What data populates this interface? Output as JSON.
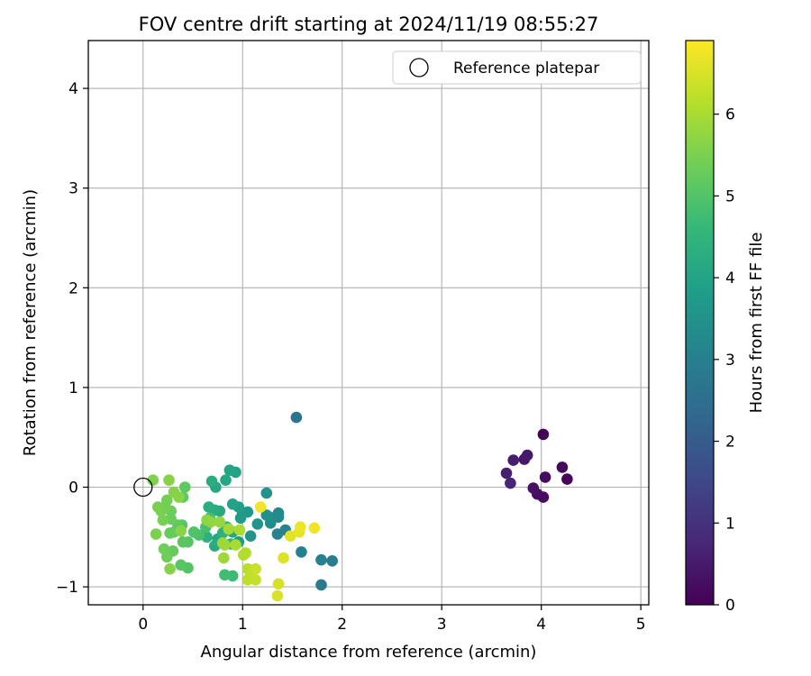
{
  "chart_data": {
    "type": "scatter",
    "title": "FOV centre drift starting at 2024/11/19 08:55:27",
    "xlabel": "Angular distance from reference (arcmin)",
    "ylabel": "Rotation from reference (arcmin)",
    "xlim": [
      -0.55,
      5.08
    ],
    "ylim": [
      -1.18,
      4.48
    ],
    "xticks": [
      0,
      1,
      2,
      3,
      4,
      5
    ],
    "yticks": [
      -1,
      0,
      1,
      2,
      3,
      4
    ],
    "grid": true,
    "colormap": "viridis",
    "colorbar": {
      "label": "Hours from first FF file",
      "range": [
        0,
        6.9
      ],
      "ticks": [
        0,
        1,
        2,
        3,
        4,
        5,
        6
      ],
      "colors": [
        "#440154",
        "#482878",
        "#3e4989",
        "#31688e",
        "#26828e",
        "#1f9e89",
        "#35b779",
        "#6ece58",
        "#b5de2b",
        "#fde725"
      ]
    },
    "legend": {
      "position": "top-right",
      "entries": [
        {
          "label": "Reference platepar",
          "marker": "open-circle",
          "x": 0,
          "y": 0
        }
      ]
    },
    "points": [
      [
        4.02,
        0.53,
        0.05
      ],
      [
        4.26,
        0.08,
        0.1
      ],
      [
        4.21,
        0.2,
        0.15
      ],
      [
        4.04,
        0.1,
        0.2
      ],
      [
        4.02,
        -0.1,
        0.25
      ],
      [
        3.96,
        -0.07,
        0.3
      ],
      [
        3.92,
        -0.01,
        0.35
      ],
      [
        3.83,
        0.28,
        0.45
      ],
      [
        3.86,
        0.32,
        0.5
      ],
      [
        3.72,
        0.27,
        0.55
      ],
      [
        3.65,
        0.14,
        0.6
      ],
      [
        3.69,
        0.04,
        0.7
      ],
      [
        1.54,
        0.7,
        2.7
      ],
      [
        1.79,
        -0.98,
        2.8
      ],
      [
        1.9,
        -0.74,
        2.9
      ],
      [
        1.79,
        -0.73,
        3.0
      ],
      [
        1.59,
        -0.65,
        3.05
      ],
      [
        1.35,
        -0.47,
        3.1
      ],
      [
        1.43,
        -0.43,
        3.15
      ],
      [
        1.36,
        -0.26,
        3.2
      ],
      [
        1.36,
        -0.3,
        3.3
      ],
      [
        1.28,
        -0.36,
        3.35
      ],
      [
        1.27,
        -0.3,
        3.4
      ],
      [
        1.24,
        -0.28,
        3.45
      ],
      [
        1.24,
        -0.06,
        3.5
      ],
      [
        1.15,
        -0.37,
        3.55
      ],
      [
        1.08,
        -0.49,
        3.6
      ],
      [
        1.05,
        -0.25,
        3.65
      ],
      [
        1.0,
        -0.26,
        3.7
      ],
      [
        0.98,
        -0.31,
        3.75
      ],
      [
        0.96,
        -0.55,
        3.8
      ],
      [
        0.96,
        -0.2,
        3.9
      ],
      [
        0.93,
        0.15,
        3.95
      ],
      [
        0.9,
        -0.17,
        4.0
      ],
      [
        0.87,
        0.17,
        4.0
      ],
      [
        0.9,
        -0.45,
        4.05
      ],
      [
        0.83,
        0.07,
        4.1
      ],
      [
        0.77,
        -0.24,
        4.1
      ],
      [
        0.75,
        -0.52,
        4.15
      ],
      [
        0.73,
        0.0,
        4.15
      ],
      [
        0.72,
        -0.59,
        4.2
      ],
      [
        0.72,
        -0.23,
        4.25
      ],
      [
        0.69,
        0.06,
        4.25
      ],
      [
        0.66,
        -0.2,
        4.3
      ],
      [
        0.64,
        -0.5,
        4.35
      ],
      [
        0.8,
        -0.46,
        4.4
      ],
      [
        0.84,
        -0.4,
        4.45
      ],
      [
        0.88,
        -0.57,
        4.5
      ],
      [
        0.9,
        -0.89,
        4.7
      ],
      [
        0.82,
        -0.88,
        4.75
      ],
      [
        0.67,
        -0.31,
        4.8
      ],
      [
        0.63,
        -0.4,
        4.85
      ],
      [
        0.56,
        -0.48,
        4.9
      ],
      [
        0.51,
        -0.45,
        4.95
      ],
      [
        0.45,
        -0.81,
        5.0
      ],
      [
        0.45,
        -0.55,
        5.05
      ],
      [
        0.39,
        -0.38,
        5.05
      ],
      [
        0.38,
        -0.78,
        5.1
      ],
      [
        0.4,
        -0.55,
        5.1
      ],
      [
        0.4,
        -0.1,
        5.15
      ],
      [
        0.42,
        0.0,
        5.15
      ],
      [
        0.35,
        -0.38,
        5.2
      ],
      [
        0.31,
        -0.45,
        5.2
      ],
      [
        0.3,
        -0.64,
        5.25
      ],
      [
        0.27,
        -0.46,
        5.25
      ],
      [
        0.28,
        -0.32,
        5.3
      ],
      [
        0.28,
        -0.24,
        5.3
      ],
      [
        0.24,
        -0.7,
        5.35
      ],
      [
        0.21,
        -0.62,
        5.35
      ],
      [
        0.24,
        -0.13,
        5.4
      ],
      [
        0.22,
        -0.2,
        5.4
      ],
      [
        0.2,
        -0.33,
        5.45
      ],
      [
        0.18,
        -0.24,
        5.45
      ],
      [
        0.15,
        -0.2,
        5.5
      ],
      [
        0.13,
        -0.47,
        5.5
      ],
      [
        0.1,
        0.07,
        5.55
      ],
      [
        0.26,
        0.07,
        5.6
      ],
      [
        0.27,
        -0.82,
        5.6
      ],
      [
        0.31,
        -0.05,
        5.6
      ],
      [
        0.36,
        -0.1,
        5.65
      ],
      [
        0.38,
        -0.44,
        5.65
      ],
      [
        0.64,
        -0.33,
        5.7
      ],
      [
        0.68,
        -0.35,
        5.75
      ],
      [
        0.77,
        -0.35,
        5.8
      ],
      [
        0.8,
        -0.56,
        5.85
      ],
      [
        0.81,
        -0.71,
        5.9
      ],
      [
        0.82,
        -0.58,
        5.9
      ],
      [
        0.86,
        -0.42,
        5.95
      ],
      [
        0.93,
        -0.58,
        6.0
      ],
      [
        0.97,
        -0.43,
        6.05
      ],
      [
        1.01,
        -0.68,
        6.1
      ],
      [
        1.03,
        -0.66,
        6.1
      ],
      [
        1.05,
        -0.82,
        6.15
      ],
      [
        1.05,
        -0.93,
        6.2
      ],
      [
        1.08,
        -0.87,
        6.25
      ],
      [
        1.13,
        -0.93,
        6.3
      ],
      [
        1.13,
        -0.82,
        6.35
      ],
      [
        1.36,
        -0.97,
        6.45
      ],
      [
        1.35,
        -1.09,
        6.5
      ],
      [
        1.41,
        -0.71,
        6.55
      ],
      [
        1.48,
        -0.49,
        6.6
      ],
      [
        1.57,
        -0.45,
        6.65
      ],
      [
        1.58,
        -0.4,
        6.7
      ],
      [
        1.72,
        -0.41,
        6.75
      ],
      [
        1.18,
        -0.2,
        6.8
      ]
    ]
  }
}
